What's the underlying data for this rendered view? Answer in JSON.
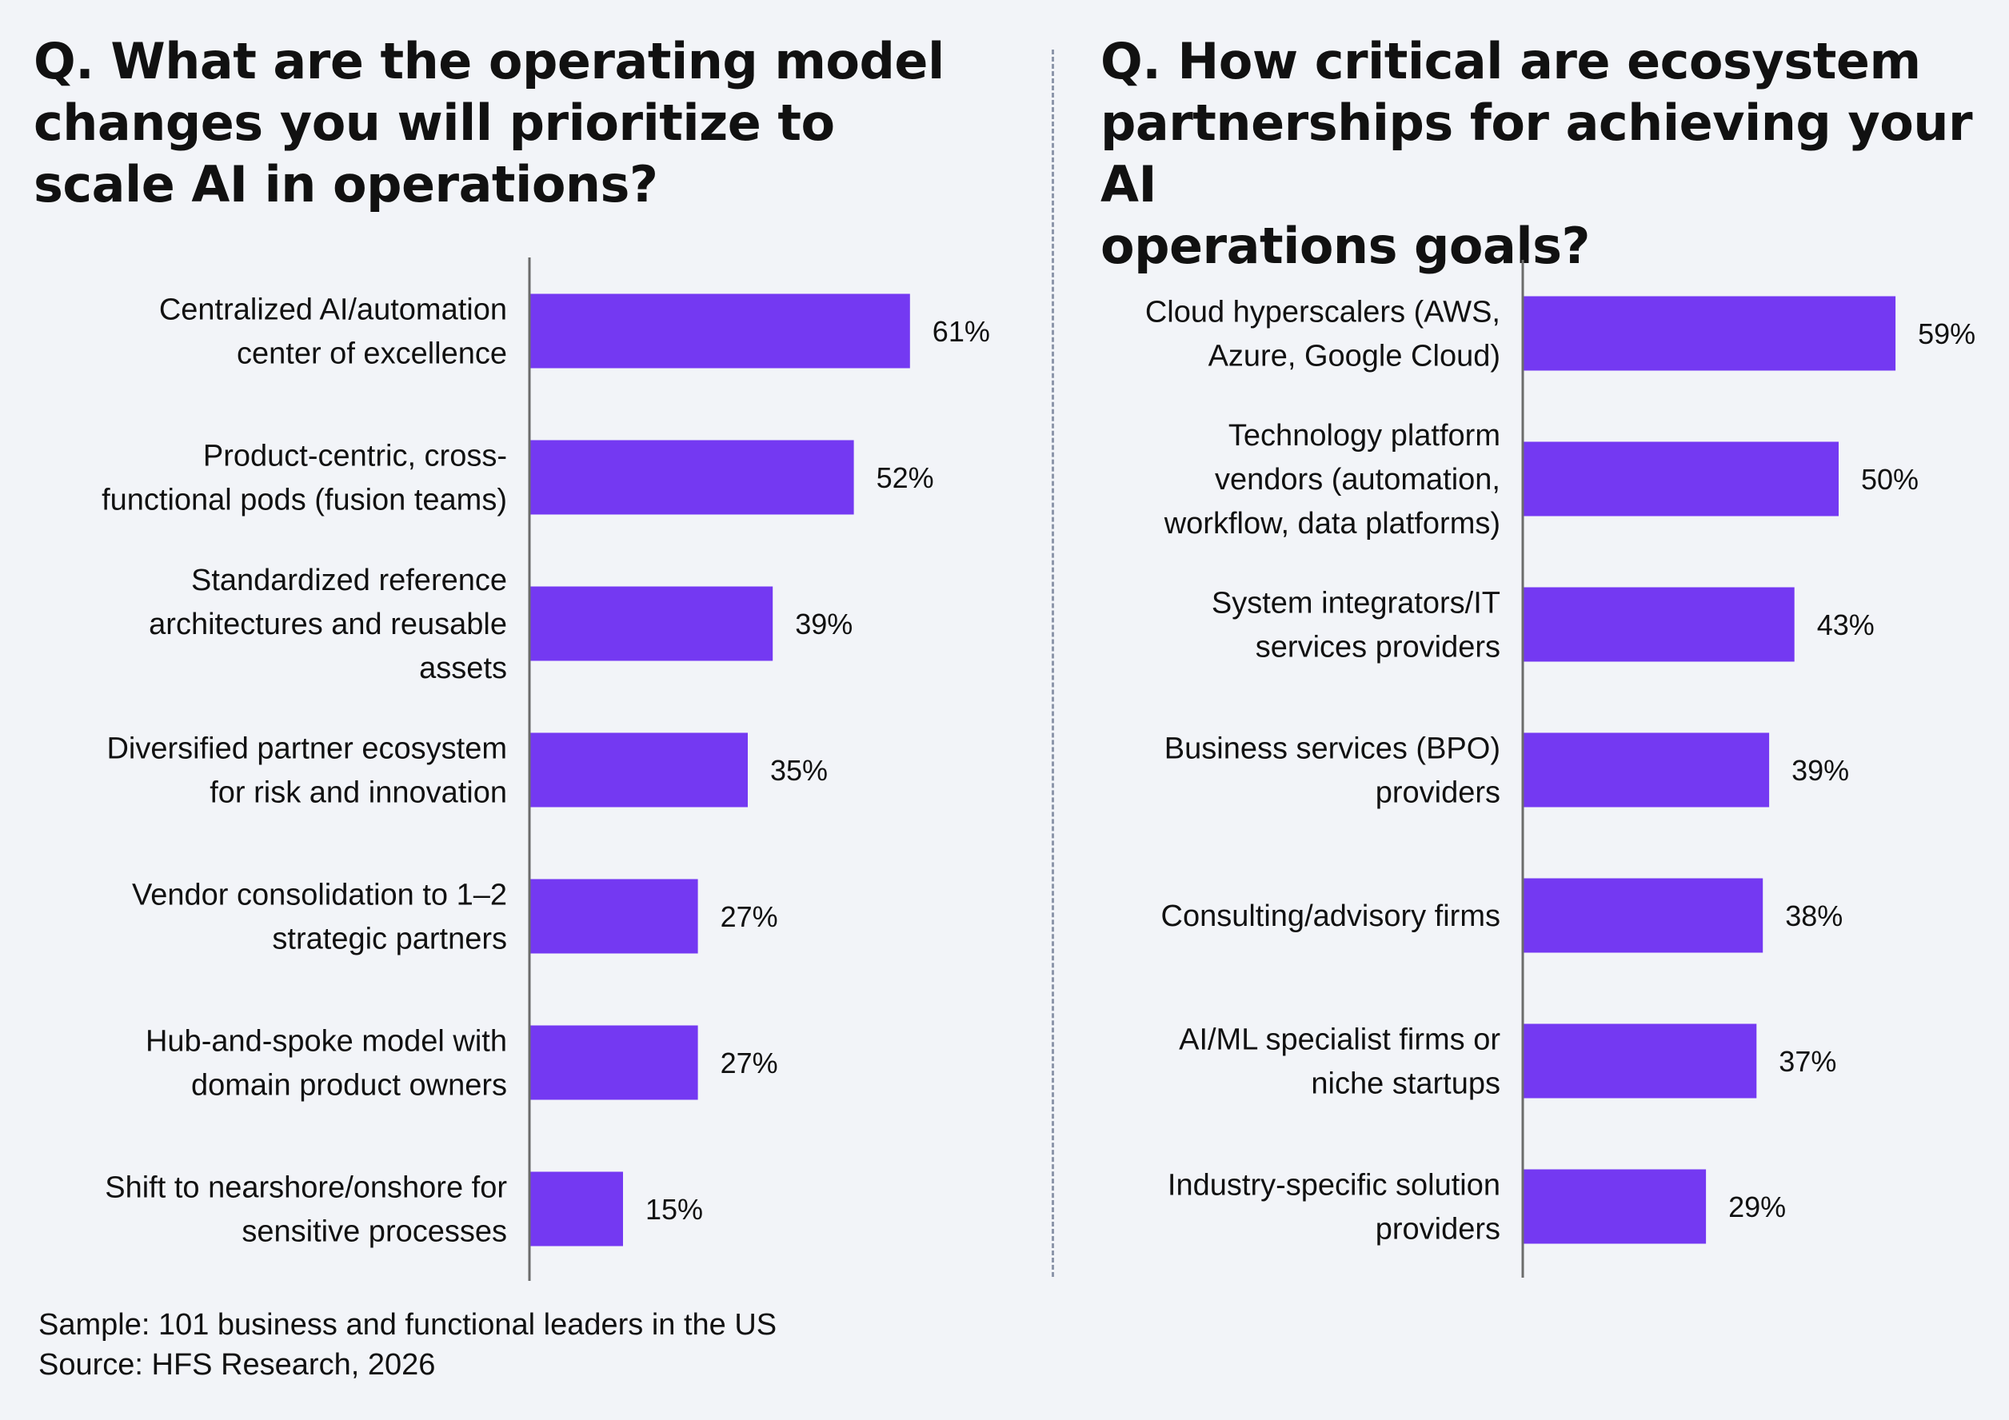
{
  "colors": {
    "bar": "#7439f2",
    "axis": "#6b6b6b",
    "divider": "#8d96aa",
    "background": "#f2f4f8"
  },
  "chart_data": [
    {
      "type": "bar",
      "orientation": "horizontal",
      "title": "Q. What are the operating model changes you will prioritize to scale AI in operations?",
      "categories": [
        "Centralized AI/automation center of excellence",
        "Product-centric, cross-functional pods (fusion teams)",
        "Standardized reference architectures and reusable assets",
        "Diversified partner ecosystem for risk and innovation",
        "Vendor consolidation to 1–2 strategic partners",
        "Hub-and-spoke model with domain product owners",
        "Shift to nearshore/onshore for sensitive processes"
      ],
      "values": [
        61,
        52,
        39,
        35,
        27,
        27,
        15
      ],
      "value_labels": [
        "61%",
        "52%",
        "39%",
        "35%",
        "27%",
        "27%",
        "15%"
      ],
      "unit": "%",
      "xlim": [
        0,
        100
      ],
      "grid": false
    },
    {
      "type": "bar",
      "orientation": "horizontal",
      "title": "Q. How critical are ecosystem partnerships for achieving your AI operations goals?",
      "categories": [
        "Cloud hyperscalers (AWS, Azure, Google Cloud)",
        "Technology platform vendors (automation, workflow, data platforms)",
        "System integrators/IT services providers",
        "Business services (BPO) providers",
        "Consulting/advisory firms",
        "AI/ML specialist firms or niche startups",
        "Industry-specific solution providers"
      ],
      "values": [
        59,
        50,
        43,
        39,
        38,
        37,
        29
      ],
      "value_labels": [
        "59%",
        "50%",
        "43%",
        "39%",
        "38%",
        "37%",
        "29%"
      ],
      "unit": "%",
      "xlim": [
        0,
        100
      ],
      "grid": false
    }
  ],
  "footer": {
    "sample": "Sample: 101 business and functional leaders in the US",
    "source": "Source: HFS Research, 2026"
  }
}
